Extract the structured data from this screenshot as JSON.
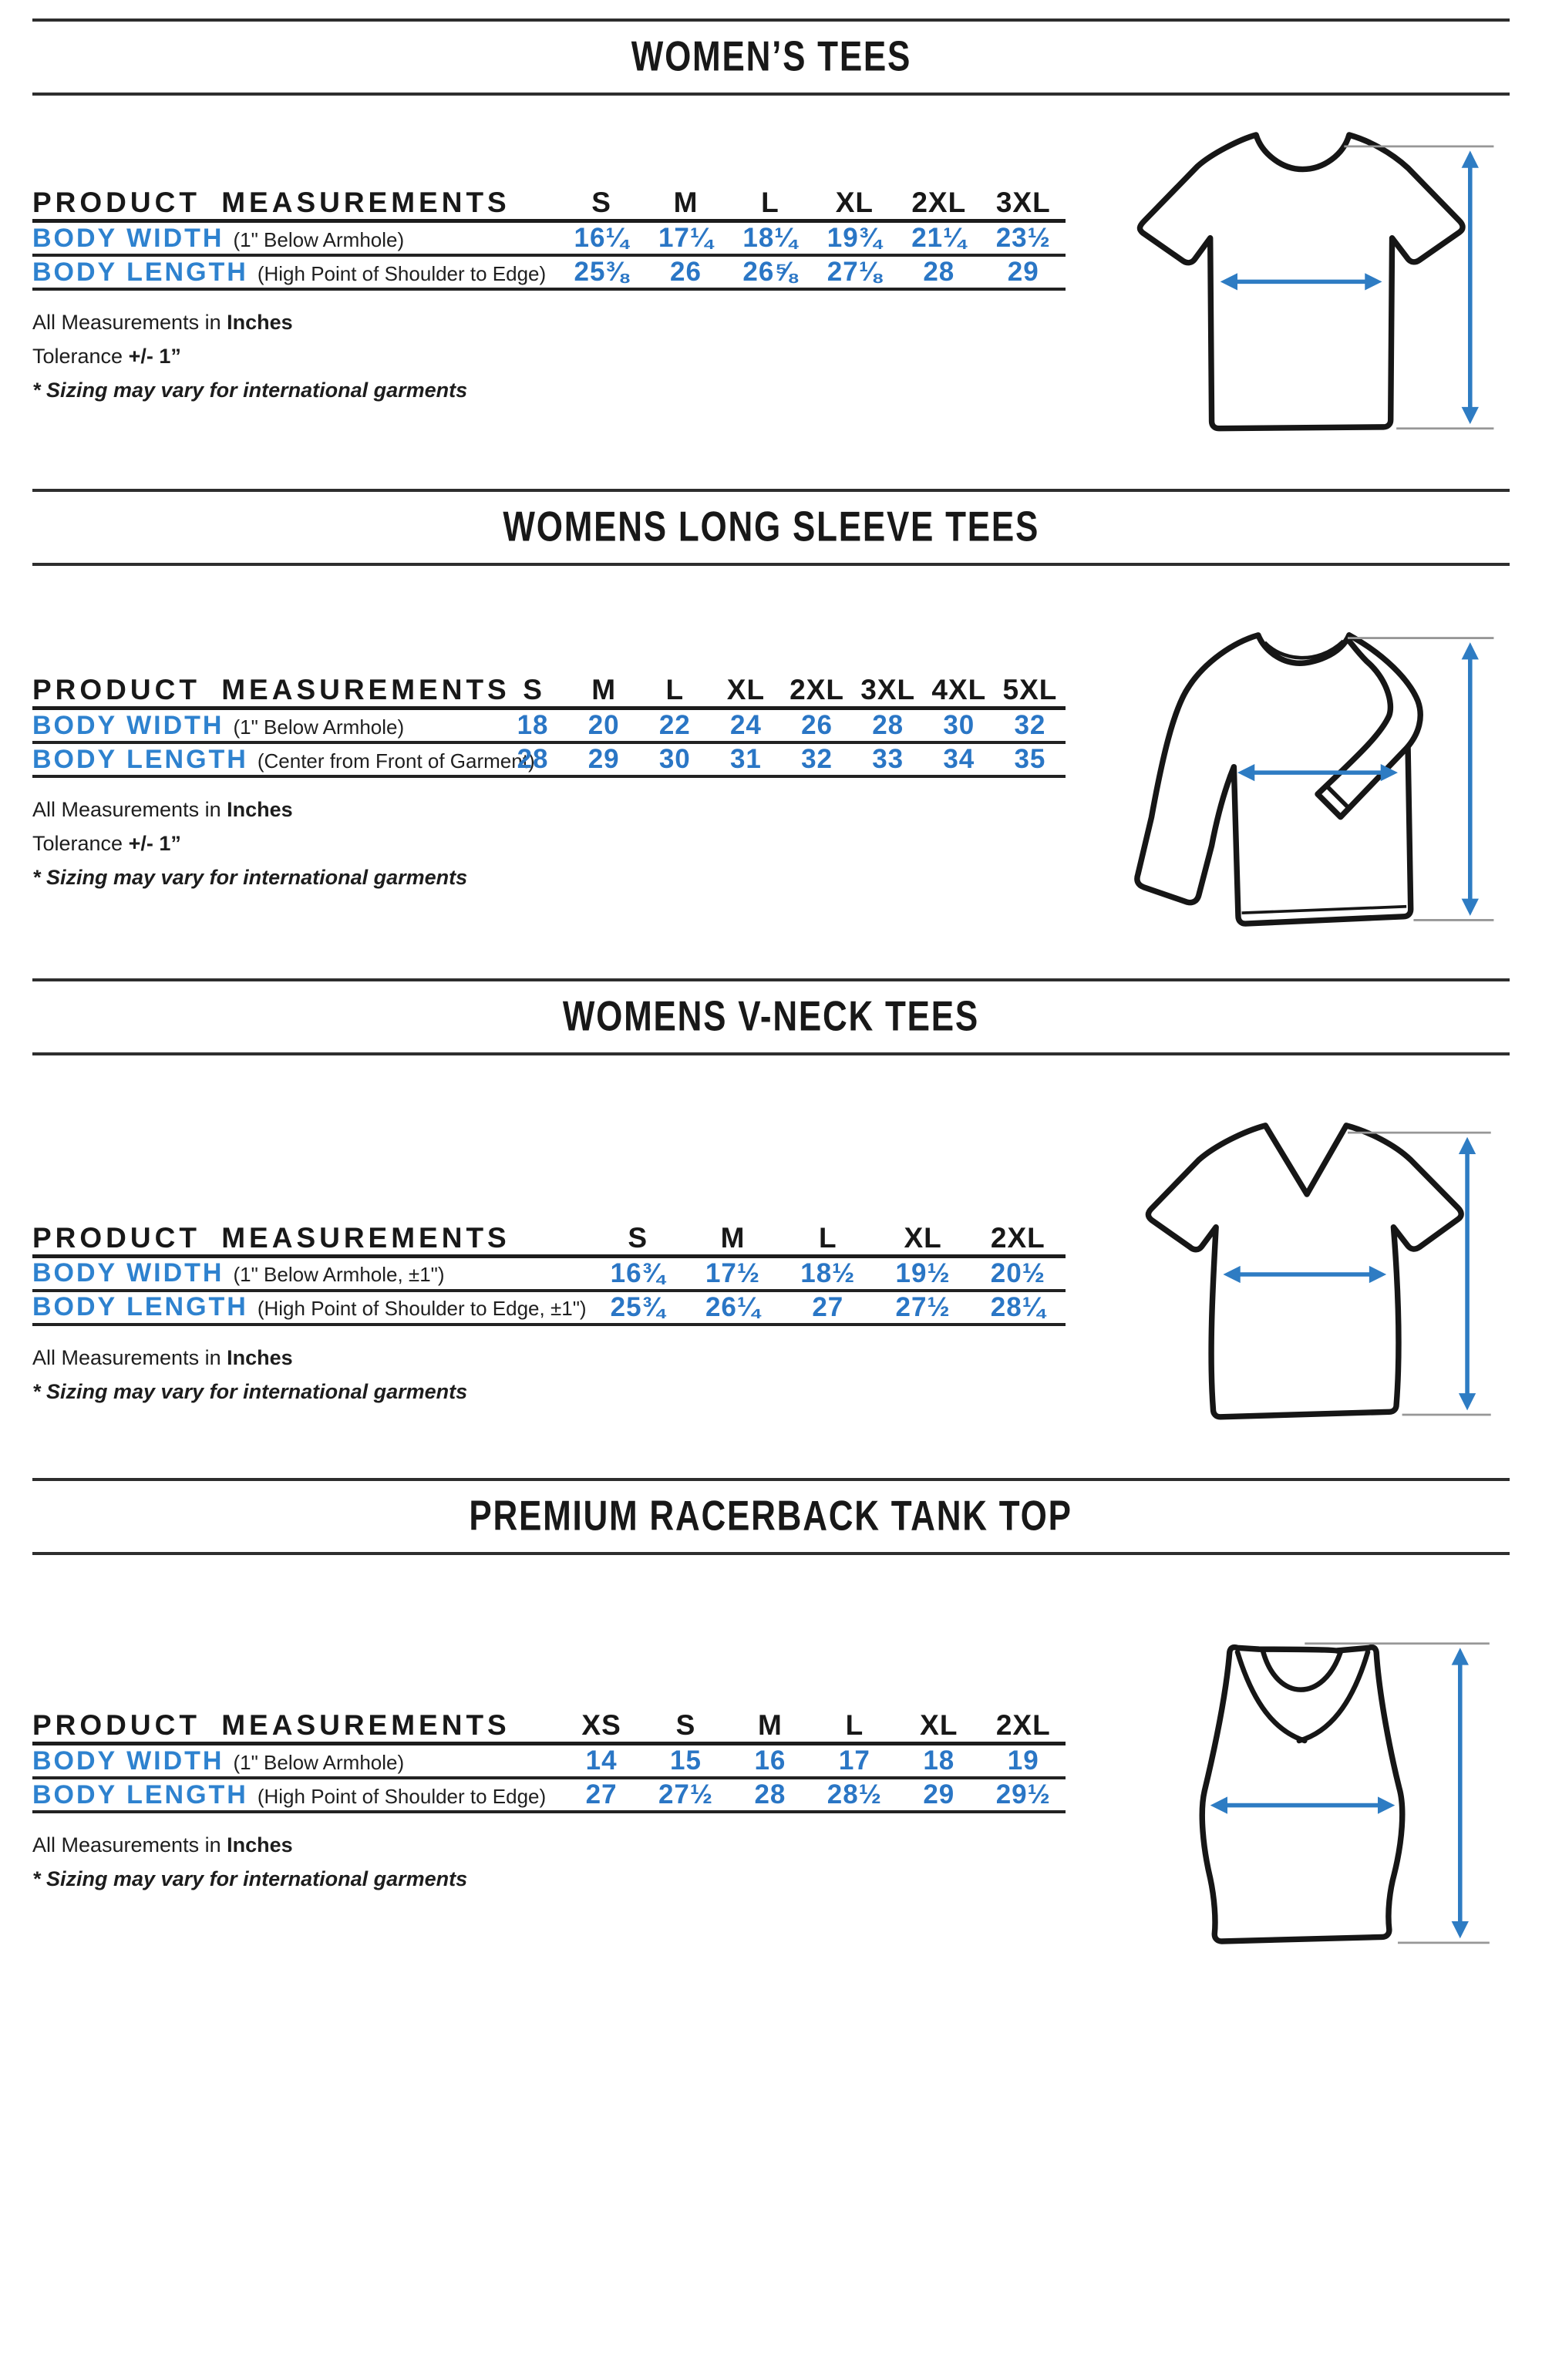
{
  "colors": {
    "accent_blue": "#2a76c5",
    "arrow_blue": "#2e7cc3",
    "text_black": "#1b1b1b",
    "rule_gray": "#2e2e2e"
  },
  "sections": [
    {
      "title": "WOMEN’S TEES",
      "illustration": "tee",
      "table": {
        "header_label": "PRODUCT MEASUREMENTS",
        "sizes": [
          "S",
          "M",
          "L",
          "XL",
          "2XL",
          "3XL"
        ],
        "rows": [
          {
            "label": "BODY WIDTH",
            "note": "(1\" Below Armhole)",
            "values": [
              "16¼",
              "17¼",
              "18¼",
              "19¾",
              "21¼",
              "23½"
            ]
          },
          {
            "label": "BODY LENGTH",
            "note": "(High Point of Shoulder to Edge)",
            "values": [
              "25⅜",
              "26",
              "26⅝",
              "27⅛",
              "28",
              "29"
            ]
          }
        ]
      },
      "footnotes": [
        {
          "italic": false,
          "segments": [
            {
              "t": "All Measurements in ",
              "b": false
            },
            {
              "t": "Inches",
              "b": true
            }
          ]
        },
        {
          "italic": false,
          "segments": [
            {
              "t": "Tolerance ",
              "b": false
            },
            {
              "t": "+/- 1”",
              "b": true
            }
          ]
        },
        {
          "italic": true,
          "segments": [
            {
              "t": "* Sizing may vary for international garments",
              "b": false
            }
          ]
        }
      ]
    },
    {
      "title": "WOMENS LONG SLEEVE TEES",
      "illustration": "longsleeve",
      "table": {
        "header_label": "PRODUCT MEASUREMENTS",
        "sizes": [
          "S",
          "M",
          "L",
          "XL",
          "2XL",
          "3XL",
          "4XL",
          "5XL"
        ],
        "rows": [
          {
            "label": "BODY WIDTH",
            "note": "(1\" Below Armhole)",
            "values": [
              "18",
              "20",
              "22",
              "24",
              "26",
              "28",
              "30",
              "32"
            ]
          },
          {
            "label": "BODY LENGTH",
            "note": "(Center from Front of Garment)",
            "values": [
              "28",
              "29",
              "30",
              "31",
              "32",
              "33",
              "34",
              "35"
            ]
          }
        ]
      },
      "footnotes": [
        {
          "italic": false,
          "segments": [
            {
              "t": "All Measurements in ",
              "b": false
            },
            {
              "t": "Inches",
              "b": true
            }
          ]
        },
        {
          "italic": false,
          "segments": [
            {
              "t": "Tolerance ",
              "b": false
            },
            {
              "t": "+/- 1”",
              "b": true
            }
          ]
        },
        {
          "italic": true,
          "segments": [
            {
              "t": "* Sizing may vary for international garments",
              "b": false
            }
          ]
        }
      ]
    },
    {
      "title": "WOMENS V-NECK TEES",
      "illustration": "vneck",
      "table": {
        "header_label": "PRODUCT MEASUREMENTS",
        "sizes": [
          "S",
          "M",
          "L",
          "XL",
          "2XL"
        ],
        "rows": [
          {
            "label": "BODY WIDTH",
            "note": "(1\" Below Armhole, ±1\")",
            "values": [
              "16¾",
              "17½",
              "18½",
              "19½",
              "20½"
            ]
          },
          {
            "label": "BODY LENGTH",
            "note": "(High Point of Shoulder to Edge, ±1\")",
            "values": [
              "25¾",
              "26¼",
              "27",
              "27½",
              "28¼"
            ]
          }
        ]
      },
      "footnotes": [
        {
          "italic": false,
          "segments": [
            {
              "t": "All Measurements in ",
              "b": false
            },
            {
              "t": "Inches",
              "b": true
            }
          ]
        },
        {
          "italic": true,
          "segments": [
            {
              "t": "* Sizing may vary for international garments",
              "b": false
            }
          ]
        }
      ]
    },
    {
      "title": "PREMIUM RACERBACK TANK TOP",
      "illustration": "tank",
      "table": {
        "header_label": "PRODUCT MEASUREMENTS",
        "sizes": [
          "XS",
          "S",
          "M",
          "L",
          "XL",
          "2XL"
        ],
        "rows": [
          {
            "label": "BODY WIDTH",
            "note": "(1\" Below Armhole)",
            "values": [
              "14",
              "15",
              "16",
              "17",
              "18",
              "19"
            ]
          },
          {
            "label": "BODY LENGTH",
            "note": "(High Point of Shoulder to Edge)",
            "values": [
              "27",
              "27½",
              "28",
              "28½",
              "29",
              "29½"
            ]
          }
        ]
      },
      "footnotes": [
        {
          "italic": false,
          "segments": [
            {
              "t": "All Measurements in ",
              "b": false
            },
            {
              "t": "Inches",
              "b": true
            }
          ]
        },
        {
          "italic": true,
          "segments": [
            {
              "t": "* Sizing may vary for international garments",
              "b": false
            }
          ]
        }
      ]
    }
  ]
}
